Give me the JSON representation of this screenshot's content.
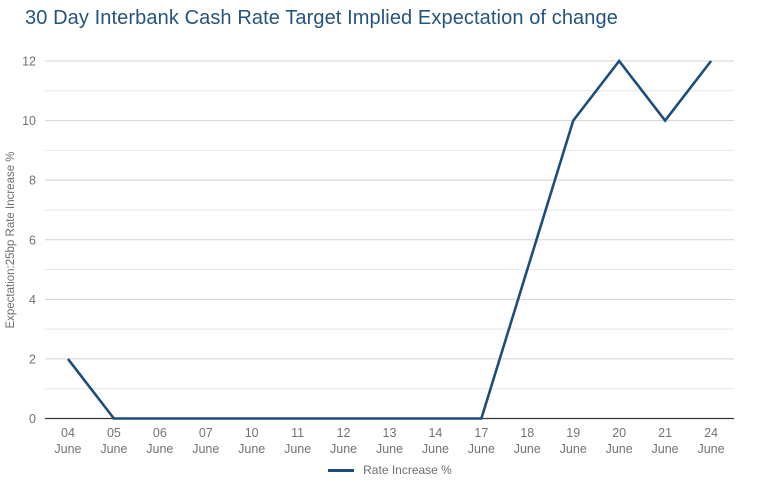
{
  "title": "30 Day Interbank Cash Rate Target Implied Expectation of change",
  "legend": {
    "label": "Rate Increase %"
  },
  "colors": {
    "title": "#25547d",
    "line": "#1d4d7d",
    "axis_text": "#737373",
    "y_axis_title_text": "#6e6e6e",
    "major_grid": "#d2d2d2",
    "minor_grid": "#e7e7e7",
    "zero_axis": "#373737",
    "background": "#ffffff"
  },
  "chart_data": {
    "type": "line",
    "title": "30 Day Interbank Cash Rate Target Implied Expectation of change",
    "xlabel": "",
    "ylabel": "Expectation:25bp Rate Increase %",
    "categories": [
      "04 June",
      "05 June",
      "06 June",
      "07 June",
      "10 June",
      "11 June",
      "12 June",
      "13 June",
      "14 June",
      "17 June",
      "18 June",
      "19 June",
      "20 June",
      "21 June",
      "24 June"
    ],
    "series": [
      {
        "name": "Rate Increase %",
        "values": [
          2,
          0,
          0,
          0,
          0,
          0,
          0,
          0,
          0,
          0,
          5,
          10,
          12,
          10,
          12
        ]
      }
    ],
    "ylim": [
      0,
      12
    ],
    "yticks": [
      0,
      2,
      4,
      6,
      8,
      10,
      12
    ],
    "minor_yticks": [
      1,
      3,
      5,
      7,
      9,
      11
    ],
    "grid": true,
    "legend_position": "bottom-center"
  }
}
